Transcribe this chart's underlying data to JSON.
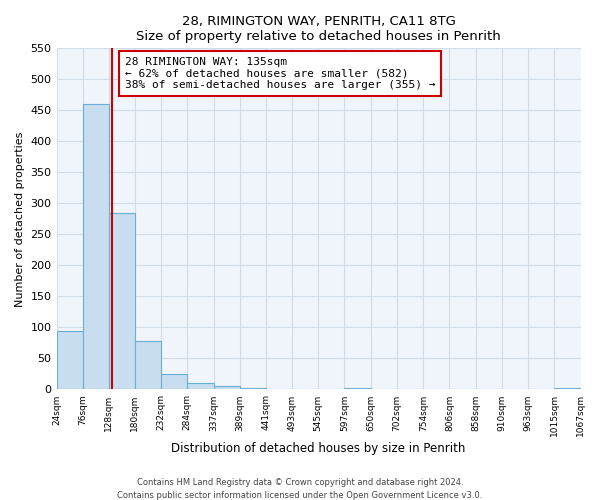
{
  "title": "28, RIMINGTON WAY, PENRITH, CA11 8TG",
  "subtitle": "Size of property relative to detached houses in Penrith",
  "xlabel": "Distribution of detached houses by size in Penrith",
  "ylabel": "Number of detached properties",
  "bar_edges": [
    24,
    76,
    128,
    180,
    232,
    284,
    337,
    389,
    441,
    493,
    545,
    597,
    650,
    702,
    754,
    806,
    858,
    910,
    963,
    1015,
    1067
  ],
  "bar_heights": [
    95,
    460,
    285,
    78,
    25,
    10,
    5,
    2,
    0,
    0,
    0,
    2,
    0,
    0,
    0,
    0,
    0,
    0,
    0,
    2
  ],
  "bar_color": "#c8ddf0",
  "bar_edge_color": "#6aaed6",
  "vline_x": 135,
  "vline_color": "#cc0000",
  "annotation_title": "28 RIMINGTON WAY: 135sqm",
  "annotation_line1": "← 62% of detached houses are smaller (582)",
  "annotation_line2": "38% of semi-detached houses are larger (355) →",
  "annotation_box_color": "#ffffff",
  "annotation_box_edge": "#cc0000",
  "ylim": [
    0,
    550
  ],
  "xlim_left": 24,
  "xlim_right": 1067,
  "tick_labels": [
    "24sqm",
    "76sqm",
    "128sqm",
    "180sqm",
    "232sqm",
    "284sqm",
    "337sqm",
    "389sqm",
    "441sqm",
    "493sqm",
    "545sqm",
    "597sqm",
    "650sqm",
    "702sqm",
    "754sqm",
    "806sqm",
    "858sqm",
    "910sqm",
    "963sqm",
    "1015sqm",
    "1067sqm"
  ],
  "ytick_labels": [
    0,
    50,
    100,
    150,
    200,
    250,
    300,
    350,
    400,
    450,
    500,
    550
  ],
  "footer1": "Contains HM Land Registry data © Crown copyright and database right 2024.",
  "footer2": "Contains public sector information licensed under the Open Government Licence v3.0.",
  "grid_color": "#d0dce8",
  "bg_color": "#f0f5fb"
}
